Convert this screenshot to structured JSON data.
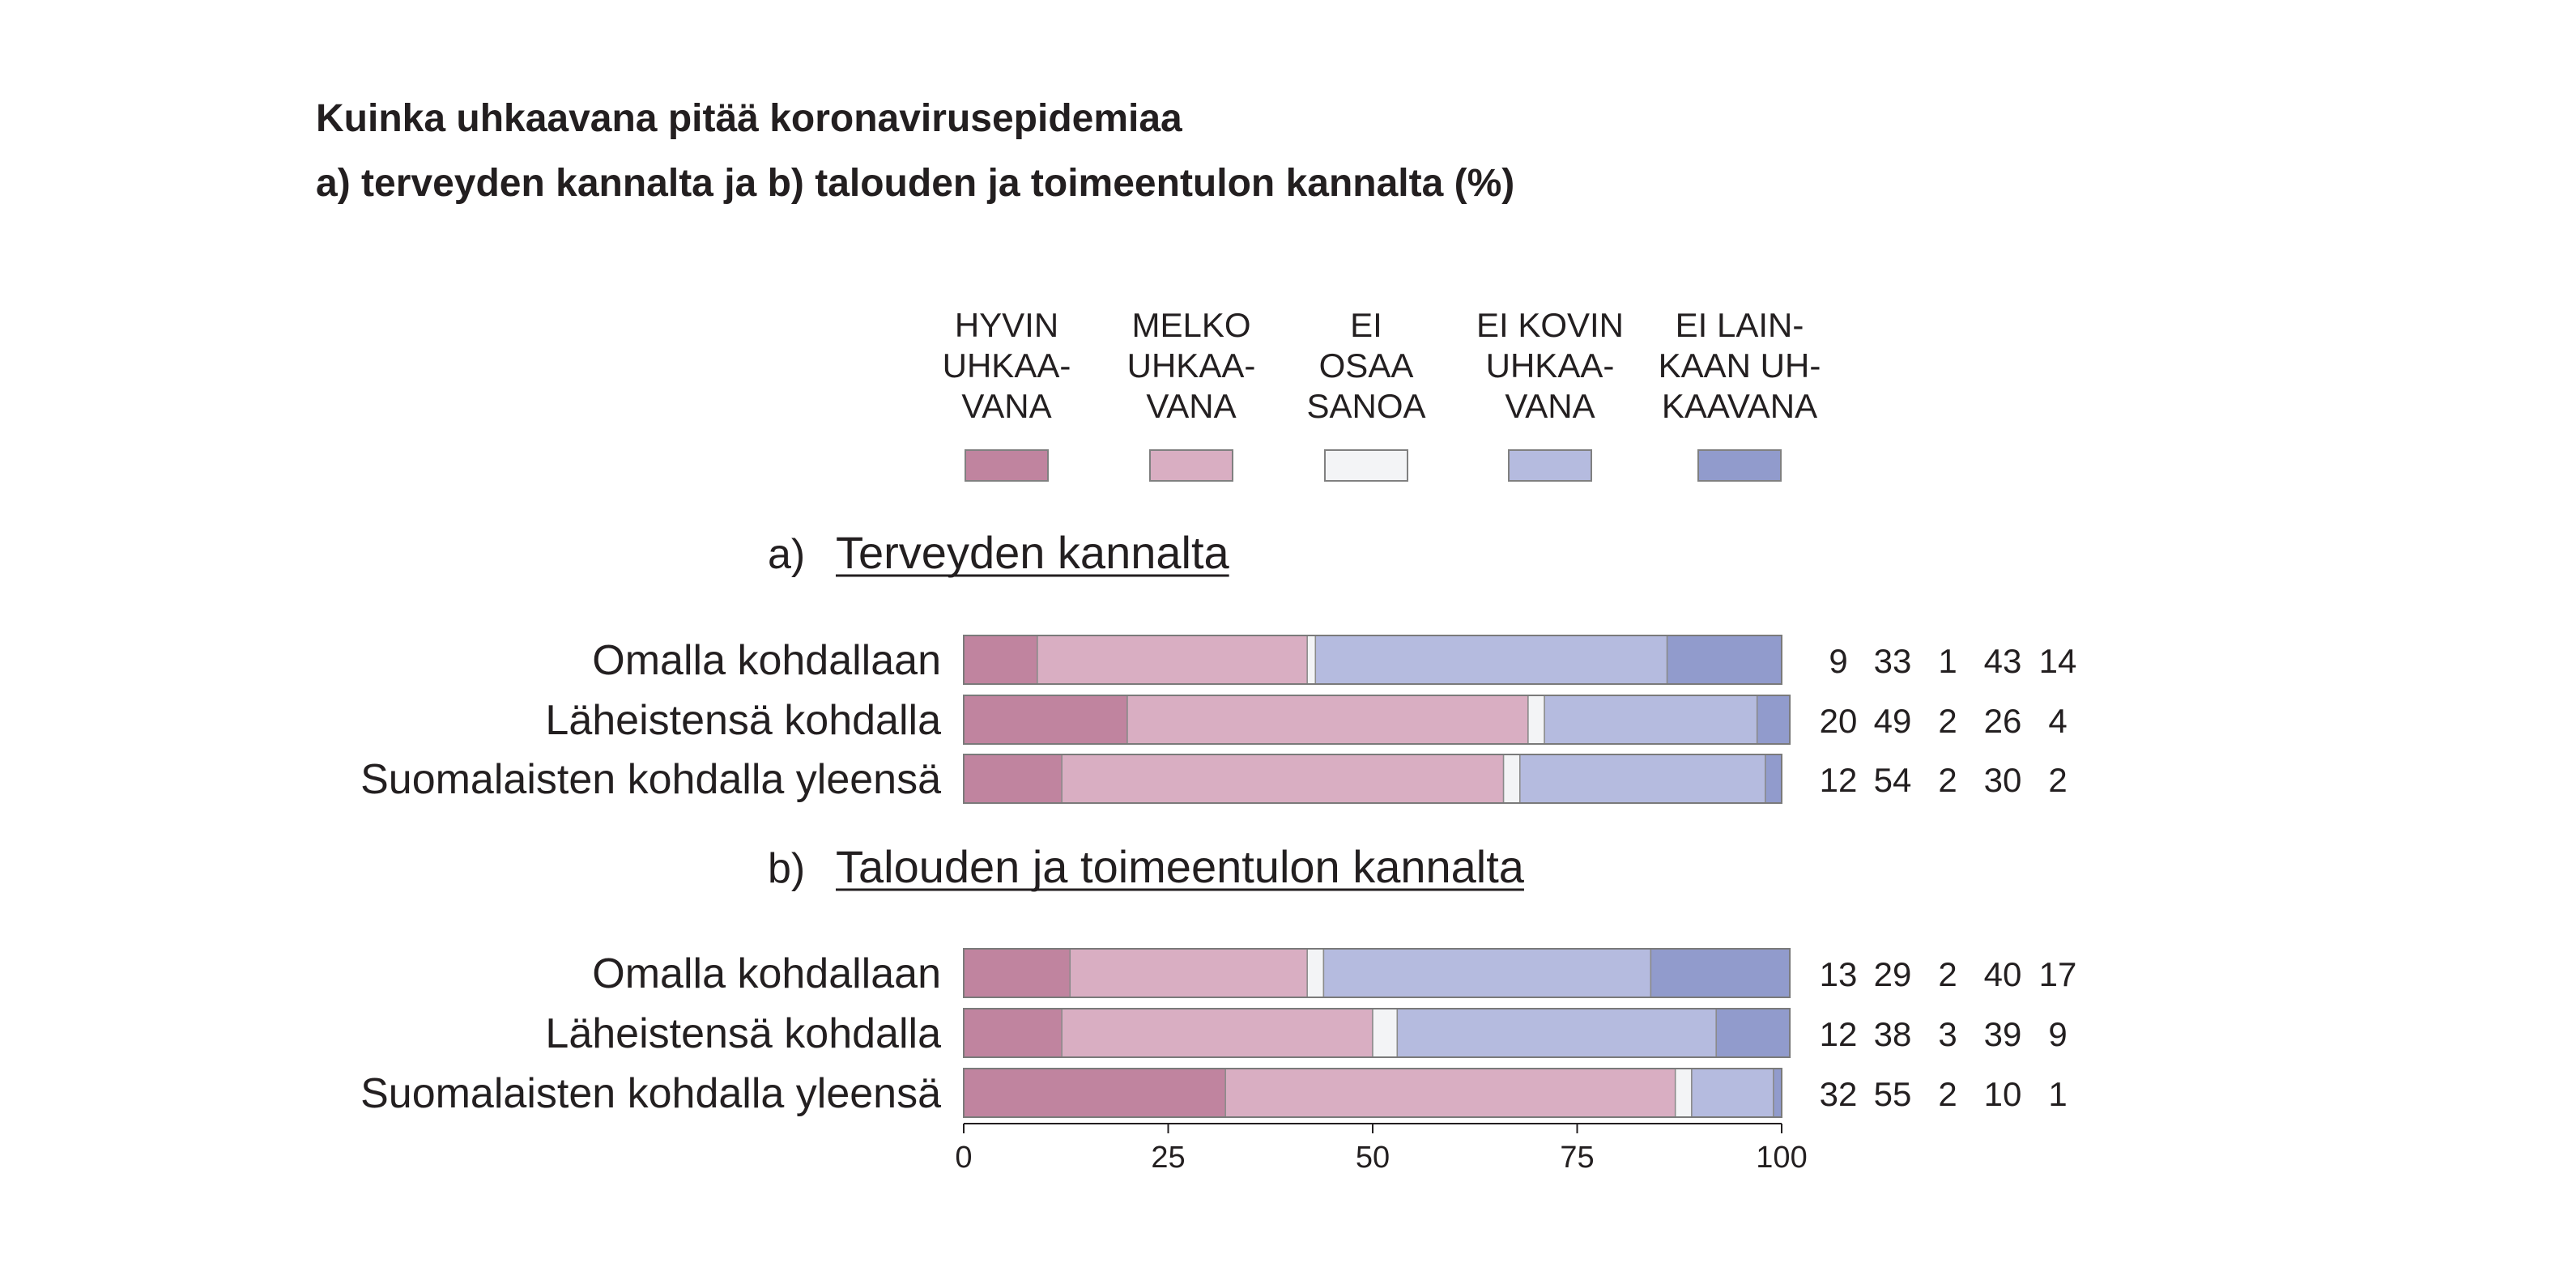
{
  "title": {
    "line1": "Kuinka uhkaavana pitää koronavirusepidemiaa",
    "line2": "a) terveyden kannalta ja b) talouden ja toimeentulon kannalta (%)"
  },
  "chart_data": {
    "type": "bar",
    "orientation": "horizontal",
    "stacked": true,
    "xlim": [
      0,
      100
    ],
    "x_ticks": [
      "0",
      "25",
      "50",
      "75",
      "100"
    ],
    "legend": {
      "position": "top",
      "entries": [
        {
          "lines": [
            "HYVIN",
            "UHKAA-",
            "VANA"
          ],
          "color": "#c0849f"
        },
        {
          "lines": [
            "MELKO",
            "UHKAA-",
            "VANA"
          ],
          "color": "#d9aec2"
        },
        {
          "lines": [
            "EI",
            "OSAA",
            "SANOA"
          ],
          "color": "#f3f4f6"
        },
        {
          "lines": [
            "EI KOVIN",
            "UHKAA-",
            "VANA"
          ],
          "color": "#b5bbdf"
        },
        {
          "lines": [
            "EI LAIN-",
            "KAAN UH-",
            "KAAVANA"
          ],
          "color": "#919bcc"
        }
      ]
    },
    "panels": [
      {
        "letter": "a)",
        "title": "Terveyden kannalta",
        "categories": [
          "Omalla kohdallaan",
          "Läheistensä kohdalla",
          "Suomalaisten kohdalla yleensä"
        ],
        "values": [
          [
            9,
            33,
            1,
            43,
            14
          ],
          [
            20,
            49,
            2,
            26,
            4
          ],
          [
            12,
            54,
            2,
            30,
            2
          ]
        ]
      },
      {
        "letter": "b)",
        "title": "Talouden ja toimeentulon kannalta",
        "categories": [
          "Omalla kohdallaan",
          "Läheistensä kohdalla",
          "Suomalaisten kohdalla yleensä"
        ],
        "values": [
          [
            13,
            29,
            2,
            40,
            17
          ],
          [
            12,
            38,
            3,
            39,
            9
          ],
          [
            32,
            55,
            2,
            10,
            1
          ]
        ]
      }
    ]
  }
}
